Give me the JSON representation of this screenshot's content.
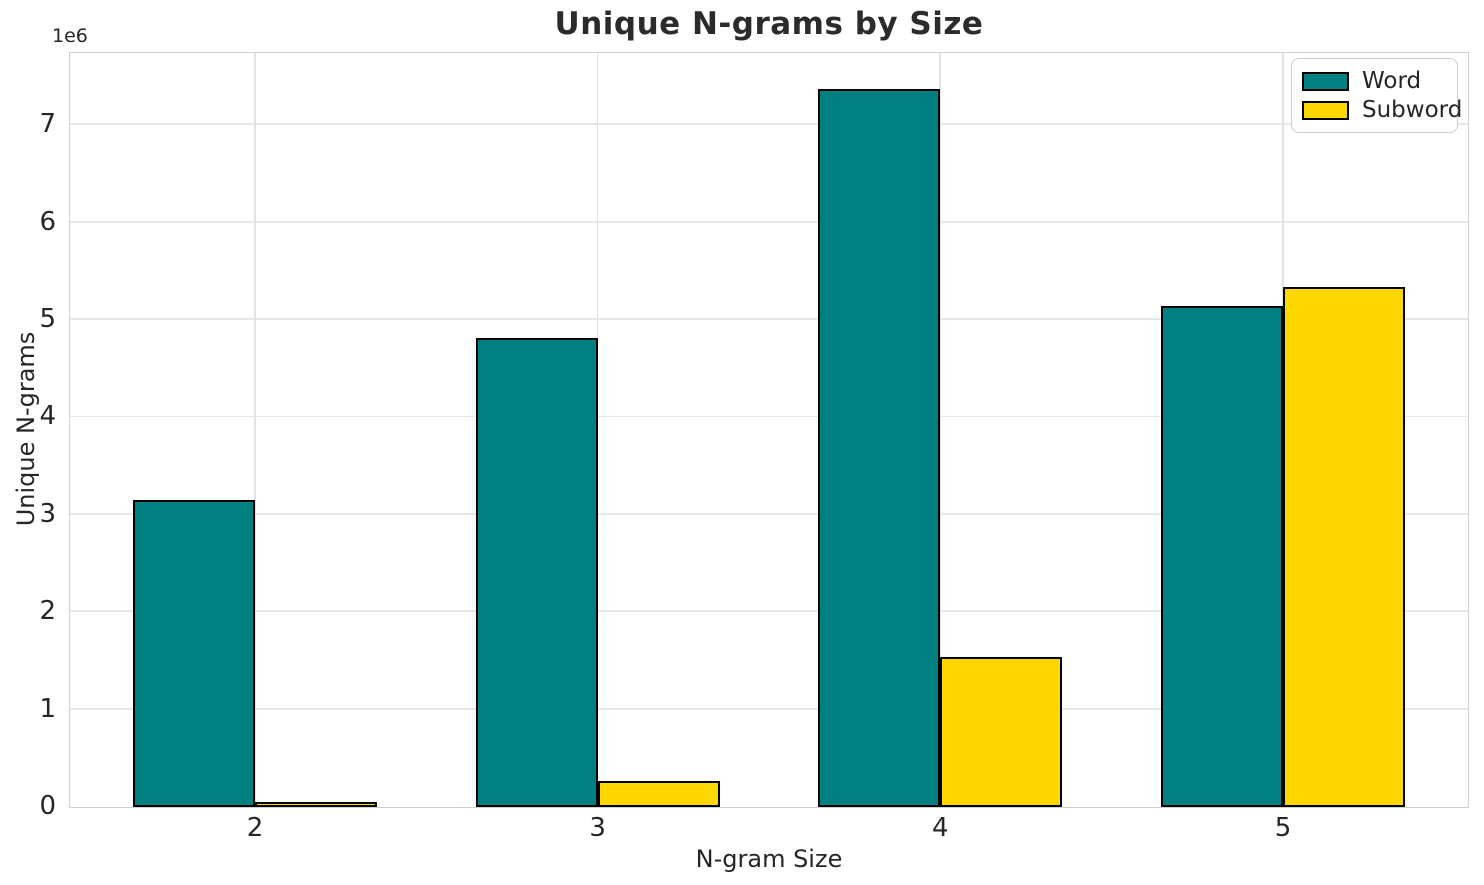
{
  "chart_data": {
    "type": "bar",
    "title": "Unique N-grams by Size",
    "xlabel": "N-gram Size",
    "ylabel": "Unique N-grams",
    "y_offset_text": "1e6",
    "categories": [
      "2",
      "3",
      "4",
      "5"
    ],
    "series": [
      {
        "name": "Word",
        "color": "#008080",
        "values": [
          3150000,
          4810000,
          7370000,
          5140000
        ]
      },
      {
        "name": "Subword",
        "color": "#FFD700",
        "values": [
          50000,
          270000,
          1545000,
          5340000
        ]
      }
    ],
    "ylim": [
      0,
      7740000
    ],
    "yticks": [
      0,
      1000000,
      2000000,
      3000000,
      4000000,
      5000000,
      6000000,
      7000000
    ],
    "ytick_labels": [
      "0",
      "1",
      "2",
      "3",
      "4",
      "5",
      "6",
      "7"
    ],
    "xtick_labels": [
      "2",
      "3",
      "4",
      "5"
    ],
    "grid": true,
    "legend_position": "upper right",
    "bar_edge_color": "#000000"
  },
  "colors": {
    "grid": "#e7e7e7",
    "spine": "#d0d0d0",
    "text": "#262626",
    "background": "#ffffff"
  }
}
